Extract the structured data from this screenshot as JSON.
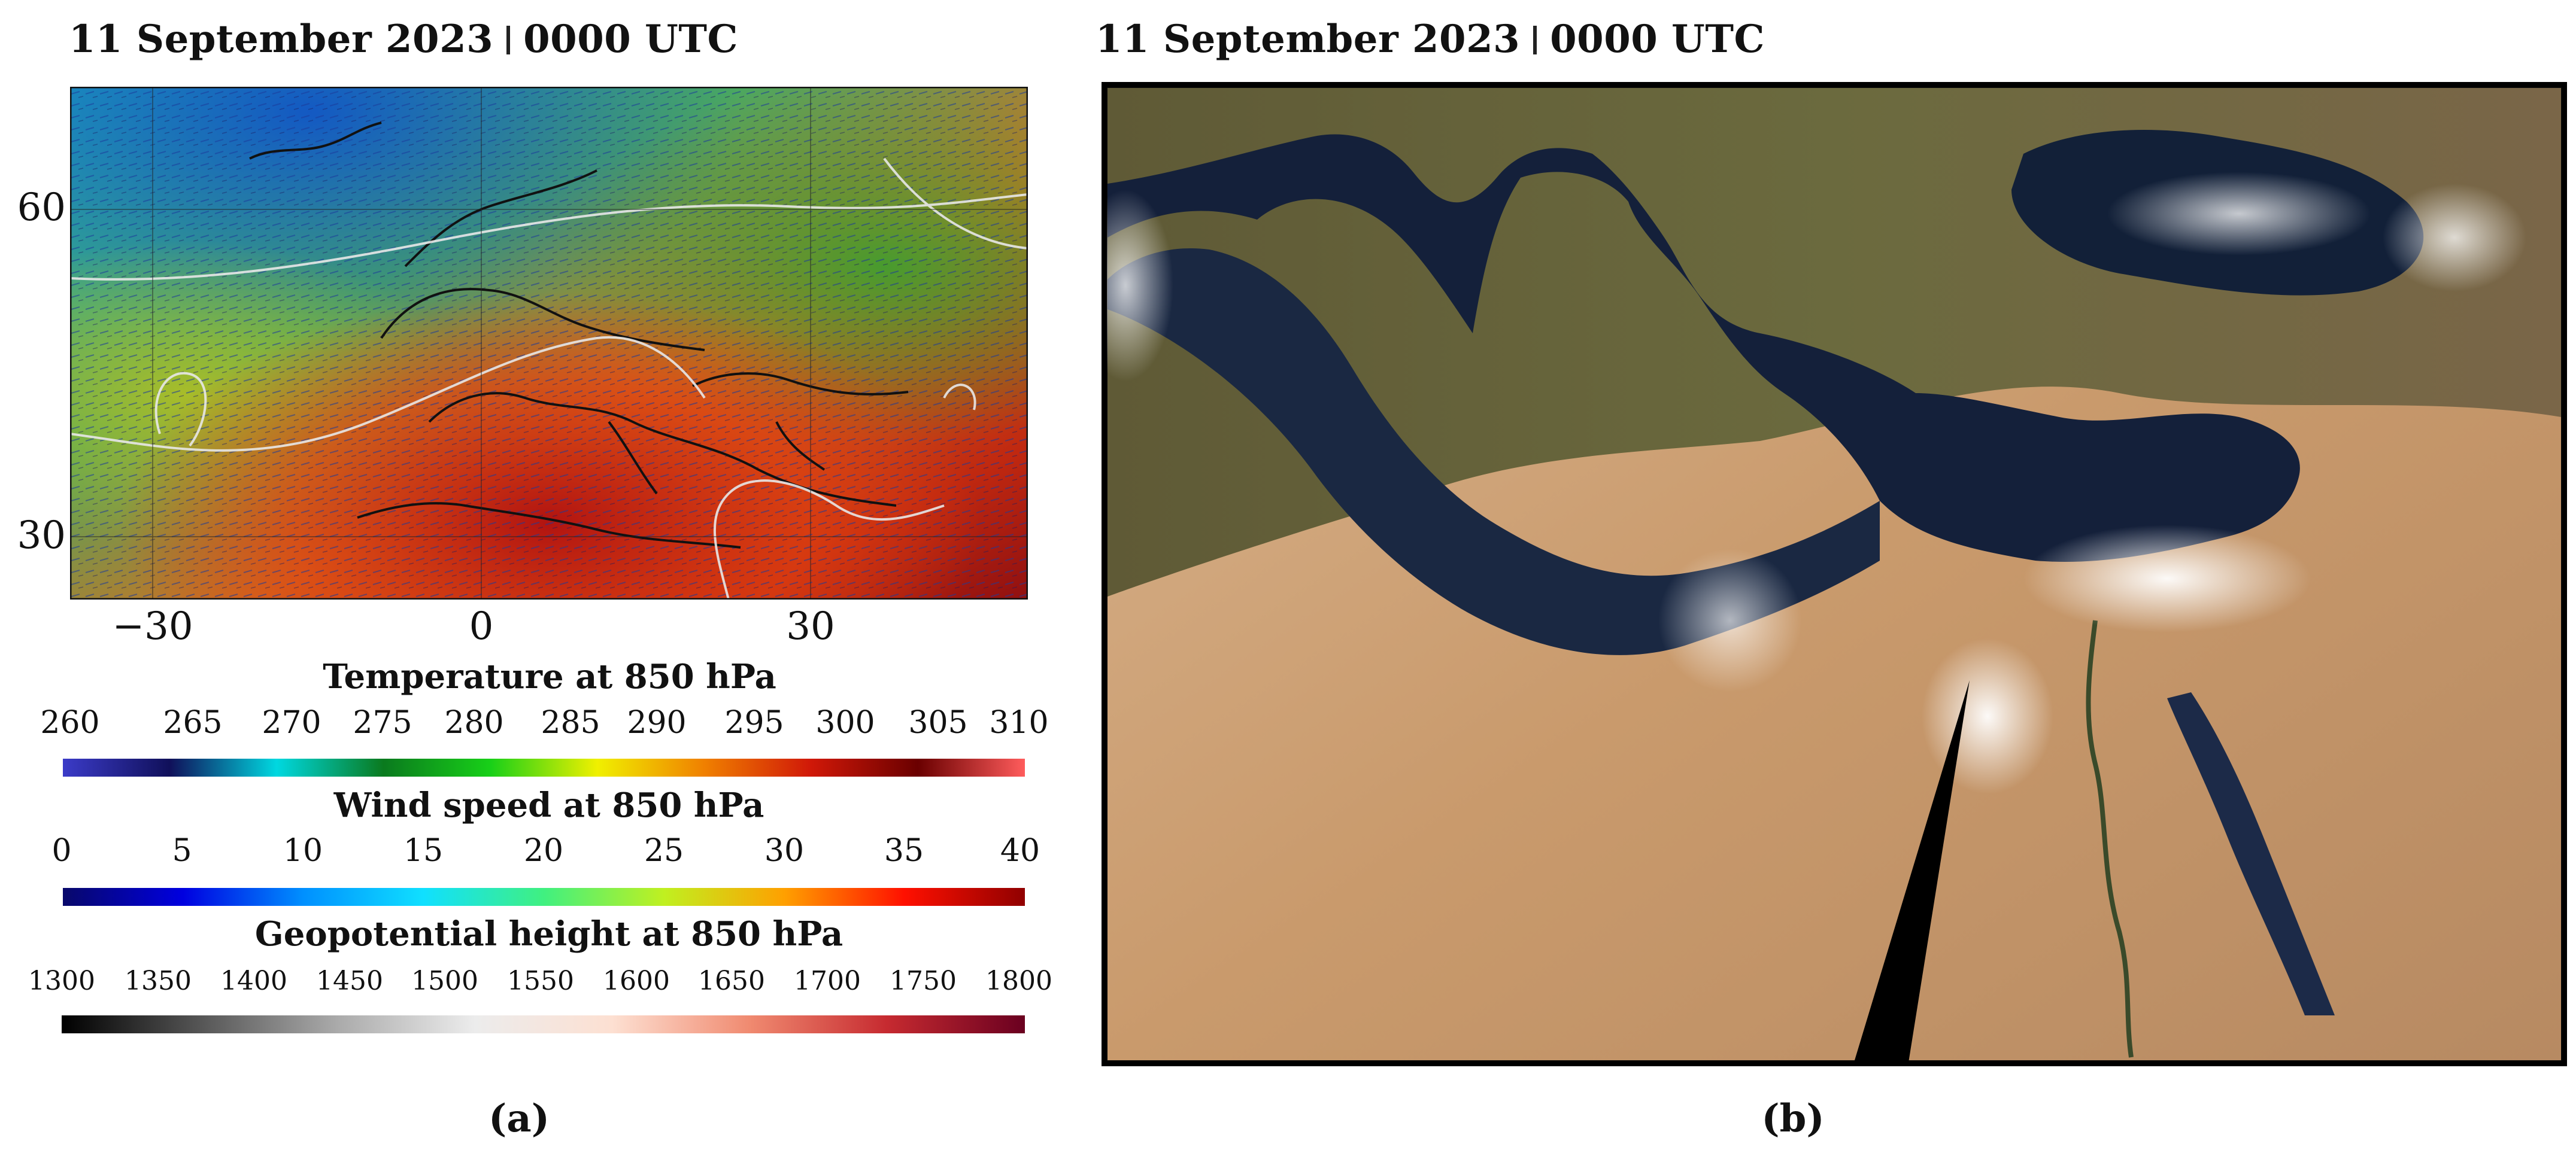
{
  "panel_a": {
    "title_date": "11 September 2023",
    "title_time": "0000 UTC",
    "y_ticks": [
      "60",
      "30"
    ],
    "x_ticks": [
      "−30",
      "0",
      "30"
    ],
    "label": "(a)"
  },
  "panel_b": {
    "title_date": "11 September 2023",
    "title_time": "0000 UTC",
    "label": "(b)"
  },
  "colorbars": [
    {
      "title": "Temperature at 850 hPa",
      "ticks": [
        "260",
        "265",
        "270",
        "275",
        "280",
        "285",
        "290",
        "295",
        "300",
        "305",
        "310"
      ],
      "colors": [
        "#3b3bc8",
        "#10105a",
        "#00d8e0",
        "#0a7a1e",
        "#18d018",
        "#f0f000",
        "#f08000",
        "#d01808",
        "#6a0000",
        "#ff5c5c"
      ]
    },
    {
      "title": "Wind speed at 850 hPa",
      "ticks": [
        "0",
        "5",
        "10",
        "15",
        "20",
        "25",
        "30",
        "35",
        "40"
      ],
      "colors": [
        "#08086a",
        "#0000e0",
        "#0090ff",
        "#10e0ff",
        "#40f080",
        "#c0f020",
        "#ffa000",
        "#ff1000",
        "#900000"
      ]
    },
    {
      "title": "Geopotential height at 850 hPa",
      "ticks": [
        "1300",
        "1350",
        "1400",
        "1450",
        "1500",
        "1550",
        "1600",
        "1650",
        "1700",
        "1750",
        "1800"
      ],
      "colors": [
        "#000000",
        "#555555",
        "#aaaaaa",
        "#ececec",
        "#fde0d2",
        "#f08a70",
        "#c62a30",
        "#6a0020"
      ]
    }
  ]
}
